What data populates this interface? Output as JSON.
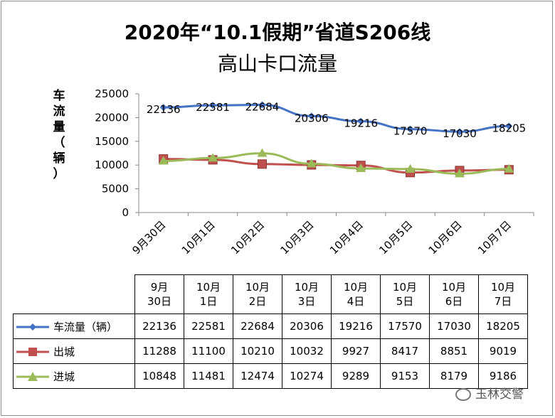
{
  "chart_data": {
    "type": "line",
    "title_line1": "2020年“10.1假期”省道S206线",
    "title_line2": "高山卡口流量",
    "ylabel_chars": [
      "车",
      "流",
      "量",
      "（",
      "辆",
      "）"
    ],
    "ylim": [
      0,
      25000
    ],
    "yticks": [
      "0",
      "5000",
      "10000",
      "15000",
      "20000",
      "25000"
    ],
    "yticks_values": [
      0,
      5000,
      10000,
      15000,
      20000,
      25000
    ],
    "categories": [
      "9月30日",
      "10月1日",
      "10月2日",
      "10月3日",
      "10月4日",
      "10月5日",
      "10月6日",
      "10月7日"
    ],
    "table_headers": [
      [
        "9月",
        "30日"
      ],
      [
        "10月",
        "1日"
      ],
      [
        "10月",
        "2日"
      ],
      [
        "10月",
        "3日"
      ],
      [
        "10月",
        "4日"
      ],
      [
        "10月",
        "5日"
      ],
      [
        "10月",
        "6日"
      ],
      [
        "10月",
        "7日"
      ]
    ],
    "series": [
      {
        "name": "车流量（辆）",
        "color": "#4472C4",
        "marker": "diamond",
        "values": [
          22136,
          22581,
          22684,
          20306,
          19216,
          17570,
          17030,
          18205
        ],
        "show_labels": true
      },
      {
        "name": "出城",
        "color": "#C0504D",
        "marker": "square",
        "values": [
          11288,
          11100,
          10210,
          10032,
          9927,
          8417,
          8851,
          9019
        ],
        "show_labels": false
      },
      {
        "name": "进城",
        "color": "#9BBB59",
        "marker": "triangle",
        "values": [
          10848,
          11481,
          12474,
          10274,
          9289,
          9153,
          8179,
          9186
        ],
        "show_labels": false
      }
    ],
    "grid": false,
    "legend": "data-table"
  },
  "watermark": "玉林交警"
}
